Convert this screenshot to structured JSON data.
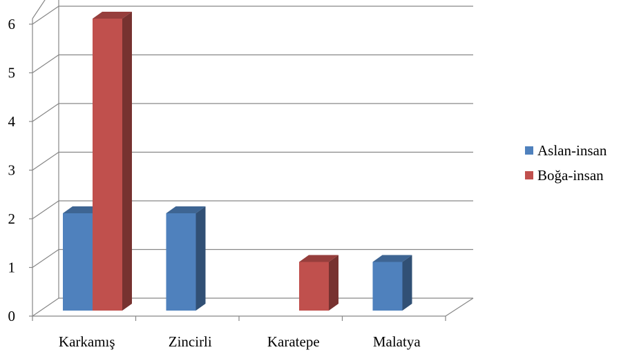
{
  "chart_data": {
    "type": "bar",
    "categories": [
      "Karkamış",
      "Zincirli",
      "Karatepe",
      "Malatya"
    ],
    "series": [
      {
        "name": "Aslan-insan",
        "values": [
          2,
          2,
          0,
          1
        ],
        "color": "#4F81BD"
      },
      {
        "name": "Boğa-insan",
        "values": [
          6,
          0,
          1,
          0
        ],
        "color": "#C0504D"
      }
    ],
    "y_ticks": [
      "0",
      "1",
      "2",
      "3",
      "4",
      "5",
      "6"
    ],
    "ylim": [
      0,
      6
    ],
    "grid": true,
    "legend_position": "right",
    "three_d": true
  }
}
